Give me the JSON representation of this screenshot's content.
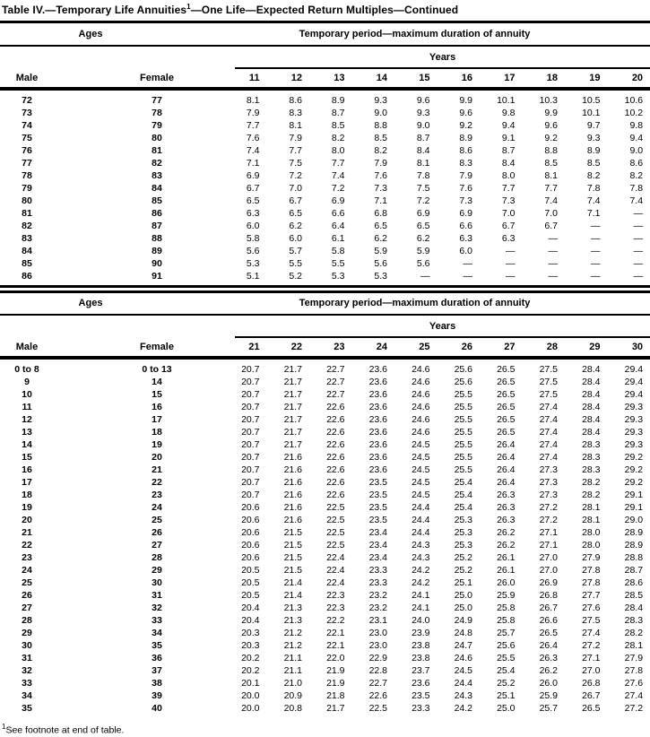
{
  "title": {
    "pre": "Table IV.—Temporary Life Annuities",
    "sup": "1",
    "post": "—One Life—Expected Return Multiples—Continued"
  },
  "footnote": {
    "sup": "1",
    "text": "See footnote at end of table."
  },
  "tables": [
    {
      "ages_header": "Ages",
      "period_header": "Temporary period—maximum duration of annuity",
      "years_header": "Years",
      "male_header": "Male",
      "female_header": "Female",
      "year_columns": [
        "11",
        "12",
        "13",
        "14",
        "15",
        "16",
        "17",
        "18",
        "19",
        "20"
      ],
      "rows": [
        {
          "male": "72",
          "female": "77",
          "values": [
            "8.1",
            "8.6",
            "8.9",
            "9.3",
            "9.6",
            "9.9",
            "10.1",
            "10.3",
            "10.5",
            "10.6"
          ]
        },
        {
          "male": "73",
          "female": "78",
          "values": [
            "7.9",
            "8.3",
            "8.7",
            "9.0",
            "9.3",
            "9.6",
            "9.8",
            "9.9",
            "10.1",
            "10.2"
          ]
        },
        {
          "male": "74",
          "female": "79",
          "values": [
            "7.7",
            "8.1",
            "8.5",
            "8.8",
            "9.0",
            "9.2",
            "9.4",
            "9.6",
            "9.7",
            "9.8"
          ]
        },
        {
          "male": "75",
          "female": "80",
          "values": [
            "7.6",
            "7.9",
            "8.2",
            "8.5",
            "8.7",
            "8.9",
            "9.1",
            "9.2",
            "9.3",
            "9.4"
          ]
        },
        {
          "male": "76",
          "female": "81",
          "values": [
            "7.4",
            "7.7",
            "8.0",
            "8.2",
            "8.4",
            "8.6",
            "8.7",
            "8.8",
            "8.9",
            "9.0"
          ]
        },
        {
          "male": "77",
          "female": "82",
          "values": [
            "7.1",
            "7.5",
            "7.7",
            "7.9",
            "8.1",
            "8.3",
            "8.4",
            "8.5",
            "8.5",
            "8.6"
          ]
        },
        {
          "male": "78",
          "female": "83",
          "values": [
            "6.9",
            "7.2",
            "7.4",
            "7.6",
            "7.8",
            "7.9",
            "8.0",
            "8.1",
            "8.2",
            "8.2"
          ]
        },
        {
          "male": "79",
          "female": "84",
          "values": [
            "6.7",
            "7.0",
            "7.2",
            "7.3",
            "7.5",
            "7.6",
            "7.7",
            "7.7",
            "7.8",
            "7.8"
          ]
        },
        {
          "male": "80",
          "female": "85",
          "values": [
            "6.5",
            "6.7",
            "6.9",
            "7.1",
            "7.2",
            "7.3",
            "7.3",
            "7.4",
            "7.4",
            "7.4"
          ]
        },
        {
          "male": "81",
          "female": "86",
          "values": [
            "6.3",
            "6.5",
            "6.6",
            "6.8",
            "6.9",
            "6.9",
            "7.0",
            "7.0",
            "7.1",
            "—"
          ]
        },
        {
          "male": "82",
          "female": "87",
          "values": [
            "6.0",
            "6.2",
            "6.4",
            "6.5",
            "6.5",
            "6.6",
            "6.7",
            "6.7",
            "—",
            "—"
          ]
        },
        {
          "male": "83",
          "female": "88",
          "values": [
            "5.8",
            "6.0",
            "6.1",
            "6.2",
            "6.2",
            "6.3",
            "6.3",
            "—",
            "—",
            "—"
          ]
        },
        {
          "male": "84",
          "female": "89",
          "values": [
            "5.6",
            "5.7",
            "5.8",
            "5.9",
            "5.9",
            "6.0",
            "—",
            "—",
            "—",
            "—"
          ]
        },
        {
          "male": "85",
          "female": "90",
          "values": [
            "5.3",
            "5.5",
            "5.5",
            "5.6",
            "5.6",
            "—",
            "—",
            "—",
            "—",
            "—"
          ]
        },
        {
          "male": "86",
          "female": "91",
          "values": [
            "5.1",
            "5.2",
            "5.3",
            "5.3",
            "—",
            "—",
            "—",
            "—",
            "—",
            "—"
          ]
        }
      ]
    },
    {
      "ages_header": "Ages",
      "period_header": "Temporary period—maximum duration of annuity",
      "years_header": "Years",
      "male_header": "Male",
      "female_header": "Female",
      "year_columns": [
        "21",
        "22",
        "23",
        "24",
        "25",
        "26",
        "27",
        "28",
        "29",
        "30"
      ],
      "rows": [
        {
          "male": "0 to 8",
          "female": "0 to 13",
          "values": [
            "20.7",
            "21.7",
            "22.7",
            "23.6",
            "24.6",
            "25.6",
            "26.5",
            "27.5",
            "28.4",
            "29.4"
          ]
        },
        {
          "male": "9",
          "female": "14",
          "values": [
            "20.7",
            "21.7",
            "22.7",
            "23.6",
            "24.6",
            "25.6",
            "26.5",
            "27.5",
            "28.4",
            "29.4"
          ]
        },
        {
          "male": "10",
          "female": "15",
          "values": [
            "20.7",
            "21.7",
            "22.7",
            "23.6",
            "24.6",
            "25.5",
            "26.5",
            "27.5",
            "28.4",
            "29.4"
          ]
        },
        {
          "male": "11",
          "female": "16",
          "values": [
            "20.7",
            "21.7",
            "22.6",
            "23.6",
            "24.6",
            "25.5",
            "26.5",
            "27.4",
            "28.4",
            "29.3"
          ]
        },
        {
          "male": "12",
          "female": "17",
          "values": [
            "20.7",
            "21.7",
            "22.6",
            "23.6",
            "24.6",
            "25.5",
            "26.5",
            "27.4",
            "28.4",
            "29.3"
          ]
        },
        {
          "male": "13",
          "female": "18",
          "values": [
            "20.7",
            "21.7",
            "22.6",
            "23.6",
            "24.6",
            "25.5",
            "26.5",
            "27.4",
            "28.4",
            "29.3"
          ]
        },
        {
          "male": "14",
          "female": "19",
          "values": [
            "20.7",
            "21.7",
            "22.6",
            "23.6",
            "24.5",
            "25.5",
            "26.4",
            "27.4",
            "28.3",
            "29.3"
          ]
        },
        {
          "male": "15",
          "female": "20",
          "values": [
            "20.7",
            "21.6",
            "22.6",
            "23.6",
            "24.5",
            "25.5",
            "26.4",
            "27.4",
            "28.3",
            "29.2"
          ]
        },
        {
          "male": "16",
          "female": "21",
          "values": [
            "20.7",
            "21.6",
            "22.6",
            "23.6",
            "24.5",
            "25.5",
            "26.4",
            "27.3",
            "28.3",
            "29.2"
          ]
        },
        {
          "male": "17",
          "female": "22",
          "values": [
            "20.7",
            "21.6",
            "22.6",
            "23.5",
            "24.5",
            "25.4",
            "26.4",
            "27.3",
            "28.2",
            "29.2"
          ]
        },
        {
          "male": "18",
          "female": "23",
          "values": [
            "20.7",
            "21.6",
            "22.6",
            "23.5",
            "24.5",
            "25.4",
            "26.3",
            "27.3",
            "28.2",
            "29.1"
          ]
        },
        {
          "male": "19",
          "female": "24",
          "values": [
            "20.6",
            "21.6",
            "22.5",
            "23.5",
            "24.4",
            "25.4",
            "26.3",
            "27.2",
            "28.1",
            "29.1"
          ]
        },
        {
          "male": "20",
          "female": "25",
          "values": [
            "20.6",
            "21.6",
            "22.5",
            "23.5",
            "24.4",
            "25.3",
            "26.3",
            "27.2",
            "28.1",
            "29.0"
          ]
        },
        {
          "male": "21",
          "female": "26",
          "values": [
            "20.6",
            "21.5",
            "22.5",
            "23.4",
            "24.4",
            "25.3",
            "26.2",
            "27.1",
            "28.0",
            "28.9"
          ]
        },
        {
          "male": "22",
          "female": "27",
          "values": [
            "20.6",
            "21.5",
            "22.5",
            "23.4",
            "24.3",
            "25.3",
            "26.2",
            "27.1",
            "28.0",
            "28.9"
          ]
        },
        {
          "male": "23",
          "female": "28",
          "values": [
            "20.6",
            "21.5",
            "22.4",
            "23.4",
            "24.3",
            "25.2",
            "26.1",
            "27.0",
            "27.9",
            "28.8"
          ]
        },
        {
          "male": "24",
          "female": "29",
          "values": [
            "20.5",
            "21.5",
            "22.4",
            "23.3",
            "24.2",
            "25.2",
            "26.1",
            "27.0",
            "27.8",
            "28.7"
          ]
        },
        {
          "male": "25",
          "female": "30",
          "values": [
            "20.5",
            "21.4",
            "22.4",
            "23.3",
            "24.2",
            "25.1",
            "26.0",
            "26.9",
            "27.8",
            "28.6"
          ]
        },
        {
          "male": "26",
          "female": "31",
          "values": [
            "20.5",
            "21.4",
            "22.3",
            "23.2",
            "24.1",
            "25.0",
            "25.9",
            "26.8",
            "27.7",
            "28.5"
          ]
        },
        {
          "male": "27",
          "female": "32",
          "values": [
            "20.4",
            "21.3",
            "22.3",
            "23.2",
            "24.1",
            "25.0",
            "25.8",
            "26.7",
            "27.6",
            "28.4"
          ]
        },
        {
          "male": "28",
          "female": "33",
          "values": [
            "20.4",
            "21.3",
            "22.2",
            "23.1",
            "24.0",
            "24.9",
            "25.8",
            "26.6",
            "27.5",
            "28.3"
          ]
        },
        {
          "male": "29",
          "female": "34",
          "values": [
            "20.3",
            "21.2",
            "22.1",
            "23.0",
            "23.9",
            "24.8",
            "25.7",
            "26.5",
            "27.4",
            "28.2"
          ]
        },
        {
          "male": "30",
          "female": "35",
          "values": [
            "20.3",
            "21.2",
            "22.1",
            "23.0",
            "23.8",
            "24.7",
            "25.6",
            "26.4",
            "27.2",
            "28.1"
          ]
        },
        {
          "male": "31",
          "female": "36",
          "values": [
            "20.2",
            "21.1",
            "22.0",
            "22.9",
            "23.8",
            "24.6",
            "25.5",
            "26.3",
            "27.1",
            "27.9"
          ]
        },
        {
          "male": "32",
          "female": "37",
          "values": [
            "20.2",
            "21.1",
            "21.9",
            "22.8",
            "23.7",
            "24.5",
            "25.4",
            "26.2",
            "27.0",
            "27.8"
          ]
        },
        {
          "male": "33",
          "female": "38",
          "values": [
            "20.1",
            "21.0",
            "21.9",
            "22.7",
            "23.6",
            "24.4",
            "25.2",
            "26.0",
            "26.8",
            "27.6"
          ]
        },
        {
          "male": "34",
          "female": "39",
          "values": [
            "20.0",
            "20.9",
            "21.8",
            "22.6",
            "23.5",
            "24.3",
            "25.1",
            "25.9",
            "26.7",
            "27.4"
          ]
        },
        {
          "male": "35",
          "female": "40",
          "values": [
            "20.0",
            "20.8",
            "21.7",
            "22.5",
            "23.3",
            "24.2",
            "25.0",
            "25.7",
            "26.5",
            "27.2"
          ]
        }
      ]
    }
  ]
}
